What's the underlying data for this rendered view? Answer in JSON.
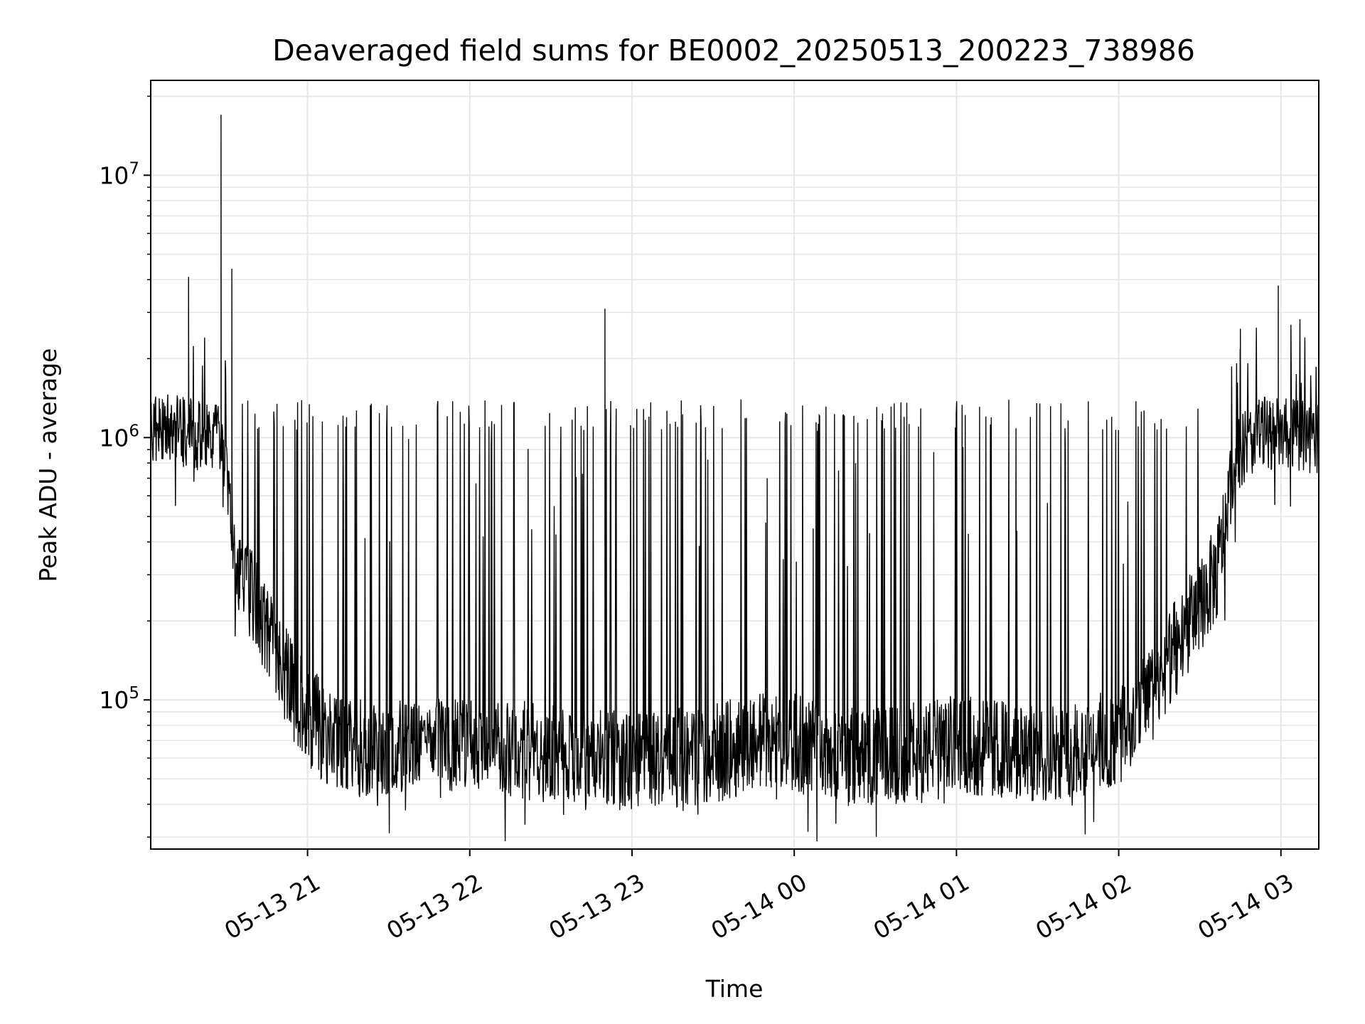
{
  "chart_data": {
    "type": "line",
    "title": "Deaveraged field sums for BE0002_20250513_200223_738986",
    "xlabel": "Time",
    "ylabel": "Peak ADU - average",
    "y_scale": "log",
    "ylim": [
      27000,
      23000000
    ],
    "xlim": [
      "2025-05-13 20:02",
      "2025-05-14 03:14"
    ],
    "x_ticks": [
      {
        "label": "05-13 21",
        "time": "2025-05-13 21:00"
      },
      {
        "label": "05-13 22",
        "time": "2025-05-13 22:00"
      },
      {
        "label": "05-13 23",
        "time": "2025-05-13 23:00"
      },
      {
        "label": "05-14 00",
        "time": "2025-05-14 00:00"
      },
      {
        "label": "05-14 01",
        "time": "2025-05-14 01:00"
      },
      {
        "label": "05-14 02",
        "time": "2025-05-14 02:00"
      },
      {
        "label": "05-14 03",
        "time": "2025-05-14 03:00"
      }
    ],
    "y_ticks": [
      {
        "base": "10",
        "exp": "5",
        "value": 100000
      },
      {
        "base": "10",
        "exp": "6",
        "value": 1000000
      },
      {
        "base": "10",
        "exp": "7",
        "value": 10000000
      }
    ],
    "grid": true,
    "line_color": "#000000",
    "grid_color": "#e6e6e6",
    "series": [
      {
        "baseline": [
          {
            "time": "2025-05-13 20:02",
            "value": 1100000
          },
          {
            "time": "2025-05-13 20:15",
            "value": 1050000
          },
          {
            "time": "2025-05-13 20:28",
            "value": 1000000
          },
          {
            "time": "2025-05-13 20:31",
            "value": 700000
          },
          {
            "time": "2025-05-13 20:33",
            "value": 340000
          },
          {
            "time": "2025-05-13 20:40",
            "value": 250000
          },
          {
            "time": "2025-05-13 20:47",
            "value": 170000
          },
          {
            "time": "2025-05-13 20:54",
            "value": 110000
          },
          {
            "time": "2025-05-13 21:06",
            "value": 75000
          },
          {
            "time": "2025-05-13 21:20",
            "value": 65000
          },
          {
            "time": "2025-05-13 22:00",
            "value": 70000
          },
          {
            "time": "2025-05-13 22:30",
            "value": 62000
          },
          {
            "time": "2025-05-13 23:00",
            "value": 58000
          },
          {
            "time": "2025-05-13 23:30",
            "value": 62000
          },
          {
            "time": "2025-05-13 23:50",
            "value": 72000
          },
          {
            "time": "2025-05-14 00:10",
            "value": 65000
          },
          {
            "time": "2025-05-14 00:30",
            "value": 60000
          },
          {
            "time": "2025-05-14 01:00",
            "value": 68000
          },
          {
            "time": "2025-05-14 01:30",
            "value": 62000
          },
          {
            "time": "2025-05-14 02:00",
            "value": 72000
          },
          {
            "time": "2025-05-14 02:10",
            "value": 95000
          },
          {
            "time": "2025-05-14 02:20",
            "value": 150000
          },
          {
            "time": "2025-05-14 02:30",
            "value": 230000
          },
          {
            "time": "2025-05-14 02:36",
            "value": 300000
          },
          {
            "time": "2025-05-14 02:40",
            "value": 500000
          },
          {
            "time": "2025-05-14 02:43",
            "value": 850000
          },
          {
            "time": "2025-05-14 02:52",
            "value": 1050000
          },
          {
            "time": "2025-05-14 03:14",
            "value": 1000000
          }
        ],
        "spikes": [
          {
            "time": "2025-05-13 20:28",
            "value": 17000000
          },
          {
            "time": "2025-05-13 20:16",
            "value": 4100000
          },
          {
            "time": "2025-05-13 20:32",
            "value": 4400000
          },
          {
            "time": "2025-05-13 22:50",
            "value": 3100000
          },
          {
            "time": "2025-05-14 02:59",
            "value": 3800000
          },
          {
            "time": "2025-05-14 02:45",
            "value": 2600000
          },
          {
            "time": "2025-05-14 00:07",
            "value": 450000
          },
          {
            "time": "2025-05-13 23:50",
            "value": 700000
          }
        ],
        "burst_peak": 1400000,
        "burst_interval": [
          "2025-05-13 20:35",
          "2025-05-14 02:30"
        ]
      }
    ]
  }
}
